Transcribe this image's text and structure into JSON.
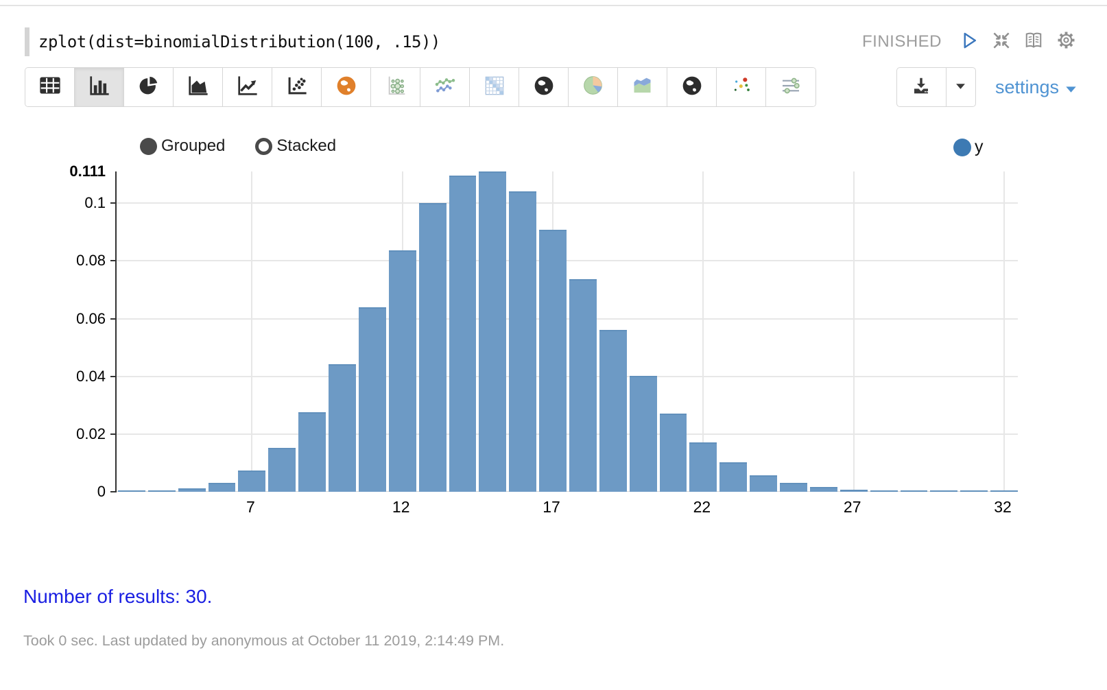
{
  "paragraph": {
    "code": "zplot(dist=binomialDistribution(100, .15))",
    "status": "FINISHED",
    "controls": [
      {
        "name": "run-button",
        "icon": "play-icon"
      },
      {
        "name": "collapse-button",
        "icon": "compress-icon"
      },
      {
        "name": "show-editor-button",
        "icon": "book-icon"
      },
      {
        "name": "paragraph-settings-button",
        "icon": "gear-icon"
      }
    ]
  },
  "toolbar": {
    "buttons": [
      {
        "name": "table",
        "icon": "table-icon",
        "selected": false
      },
      {
        "name": "bar-chart",
        "icon": "bar-chart-icon",
        "selected": true
      },
      {
        "name": "pie-chart",
        "icon": "pie-chart-icon",
        "selected": false
      },
      {
        "name": "area-chart",
        "icon": "area-chart-icon",
        "selected": false
      },
      {
        "name": "line-chart",
        "icon": "line-chart-icon",
        "selected": false
      },
      {
        "name": "scatter-chart",
        "icon": "scatter-chart-icon",
        "selected": false
      },
      {
        "name": "map-orange",
        "icon": "globe-orange-icon",
        "selected": false
      },
      {
        "name": "bubble-chart",
        "icon": "bubble-chart-icon",
        "selected": false
      },
      {
        "name": "multi-line-chart",
        "icon": "multi-line-chart-icon",
        "selected": false
      },
      {
        "name": "heatmap",
        "icon": "heatmap-icon",
        "selected": false
      },
      {
        "name": "globe-chart",
        "icon": "globe-dark-icon",
        "selected": false
      },
      {
        "name": "pie-color-chart",
        "icon": "pie-color-icon",
        "selected": false
      },
      {
        "name": "stacked-area-chart",
        "icon": "stacked-area-icon",
        "selected": false
      },
      {
        "name": "globe-chart-2",
        "icon": "globe-dark-icon",
        "selected": false
      },
      {
        "name": "scatter-color-chart",
        "icon": "scatter-color-icon",
        "selected": false
      },
      {
        "name": "parallel-coords",
        "icon": "sliders-icon",
        "selected": false
      }
    ],
    "settings_label": "settings"
  },
  "chart": {
    "modes": [
      {
        "label": "Grouped",
        "selected": true
      },
      {
        "label": "Stacked",
        "selected": false
      }
    ],
    "legend": [
      {
        "label": "y",
        "color": "#3d7ab3"
      }
    ]
  },
  "chart_data": {
    "type": "bar",
    "title": "",
    "series_name": "y",
    "x": [
      3,
      4,
      5,
      6,
      7,
      8,
      9,
      10,
      11,
      12,
      13,
      14,
      15,
      16,
      17,
      18,
      19,
      20,
      21,
      22,
      23,
      24,
      25,
      26,
      27,
      28,
      29,
      30,
      31,
      32
    ],
    "values": [
      7.8e-05,
      0.000332,
      0.001126,
      0.003145,
      0.007453,
      0.01529,
      0.027582,
      0.044294,
      0.063954,
      0.083706,
      0.099992,
      0.109656,
      0.110946,
      0.104012,
      0.090695,
      0.0738,
      0.056206,
      0.040171,
      0.027006,
      0.017113,
      0.010242,
      0.005799,
      0.003111,
      0.001583,
      0.000766,
      0.000352,
      0.000154,
      6.4e-05,
      2.6e-05,
      1e-05
    ],
    "xticks": [
      7,
      12,
      17,
      22,
      27,
      32
    ],
    "yticks": [
      0,
      0.02,
      0.04,
      0.06,
      0.08,
      0.1
    ],
    "ymax_label": "0.111",
    "ylim": [
      0,
      0.111
    ],
    "grid": true,
    "bar_color": "#6d9ac5",
    "legend_position": "top-right"
  },
  "footer": {
    "results_text": "Number of results: 30.",
    "status_line": "Took 0 sec. Last updated by anonymous at October 11 2019, 2:14:49 PM."
  },
  "colors": {
    "bar": "#6d9ac5",
    "legend": "#3d7ab3",
    "link_blue": "#4f93d2",
    "results_blue": "#1a1fe2",
    "status_gray": "#9d9d9d"
  }
}
